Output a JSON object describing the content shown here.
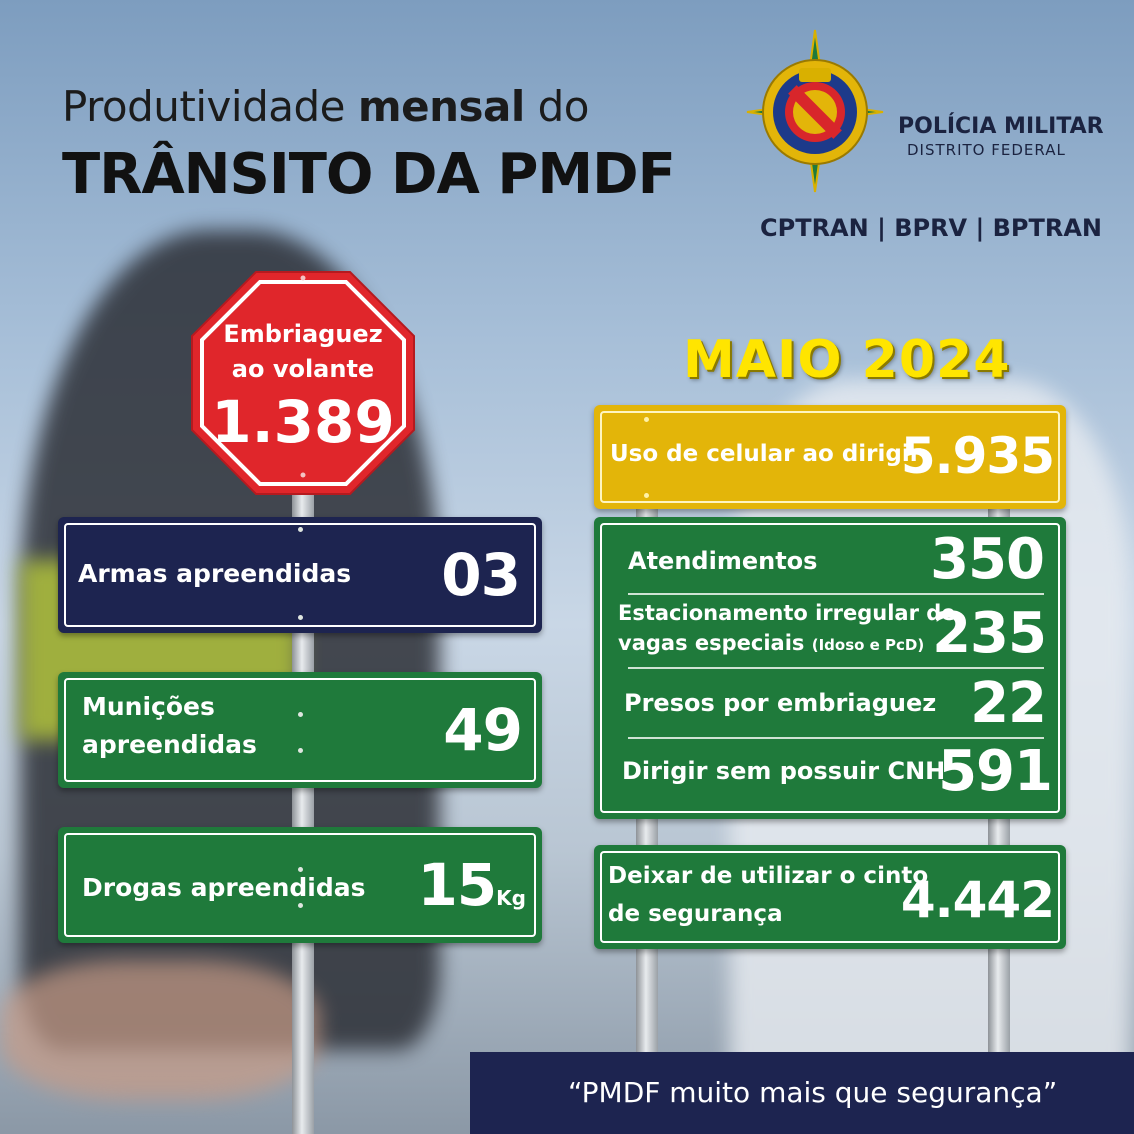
{
  "header": {
    "title_line1_pre": "Produtividade ",
    "title_line1_bold": "mensal",
    "title_line1_post": " do",
    "title_line2": "TRÂNSITO DA PMDF"
  },
  "org": {
    "name": "POLÍCIA MILITAR",
    "subname": "DISTRITO FEDERAL",
    "units": "CPTRAN | BPRV | BPTRAN",
    "crest_icon": "pmdf-crest-icon"
  },
  "period": "MAIO 2024",
  "stop_sign": {
    "label_line1": "Embriaguez",
    "label_line2": "ao volante",
    "value": "1.389"
  },
  "left_signs": {
    "armas": {
      "label": "Armas apreendidas",
      "value": "03"
    },
    "municoes": {
      "label_line1": "Munições",
      "label_line2": "apreendidas",
      "value": "49"
    },
    "drogas": {
      "label": "Drogas apreendidas",
      "value": "15",
      "unit": "Kg"
    }
  },
  "right_signs": {
    "celular": {
      "label": "Uso de celular ao dirigir",
      "value": "5.935"
    },
    "atendimentos": {
      "label": "Atendimentos",
      "value": "350"
    },
    "estacionamento": {
      "label_line1": "Estacionamento irregular de",
      "label_line2": "vagas especiais",
      "label_note": "(Idoso e PcD)",
      "value": "235"
    },
    "presos": {
      "label": "Presos por embriaguez",
      "value": "22"
    },
    "cnh": {
      "label": "Dirigir sem possuir CNH",
      "value": "591"
    },
    "cinto": {
      "label_line1": "Deixar de utilizar o cinto",
      "label_line2": "de segurança",
      "value": "4.442"
    }
  },
  "footer": {
    "slogan": "“PMDF muito mais que segurança”"
  },
  "colors": {
    "green": "#1f7a3b",
    "navy": "#1d2450",
    "yellow": "#e3b509",
    "stop_red": "#e0262b",
    "title_yellow": "#ffe500"
  }
}
